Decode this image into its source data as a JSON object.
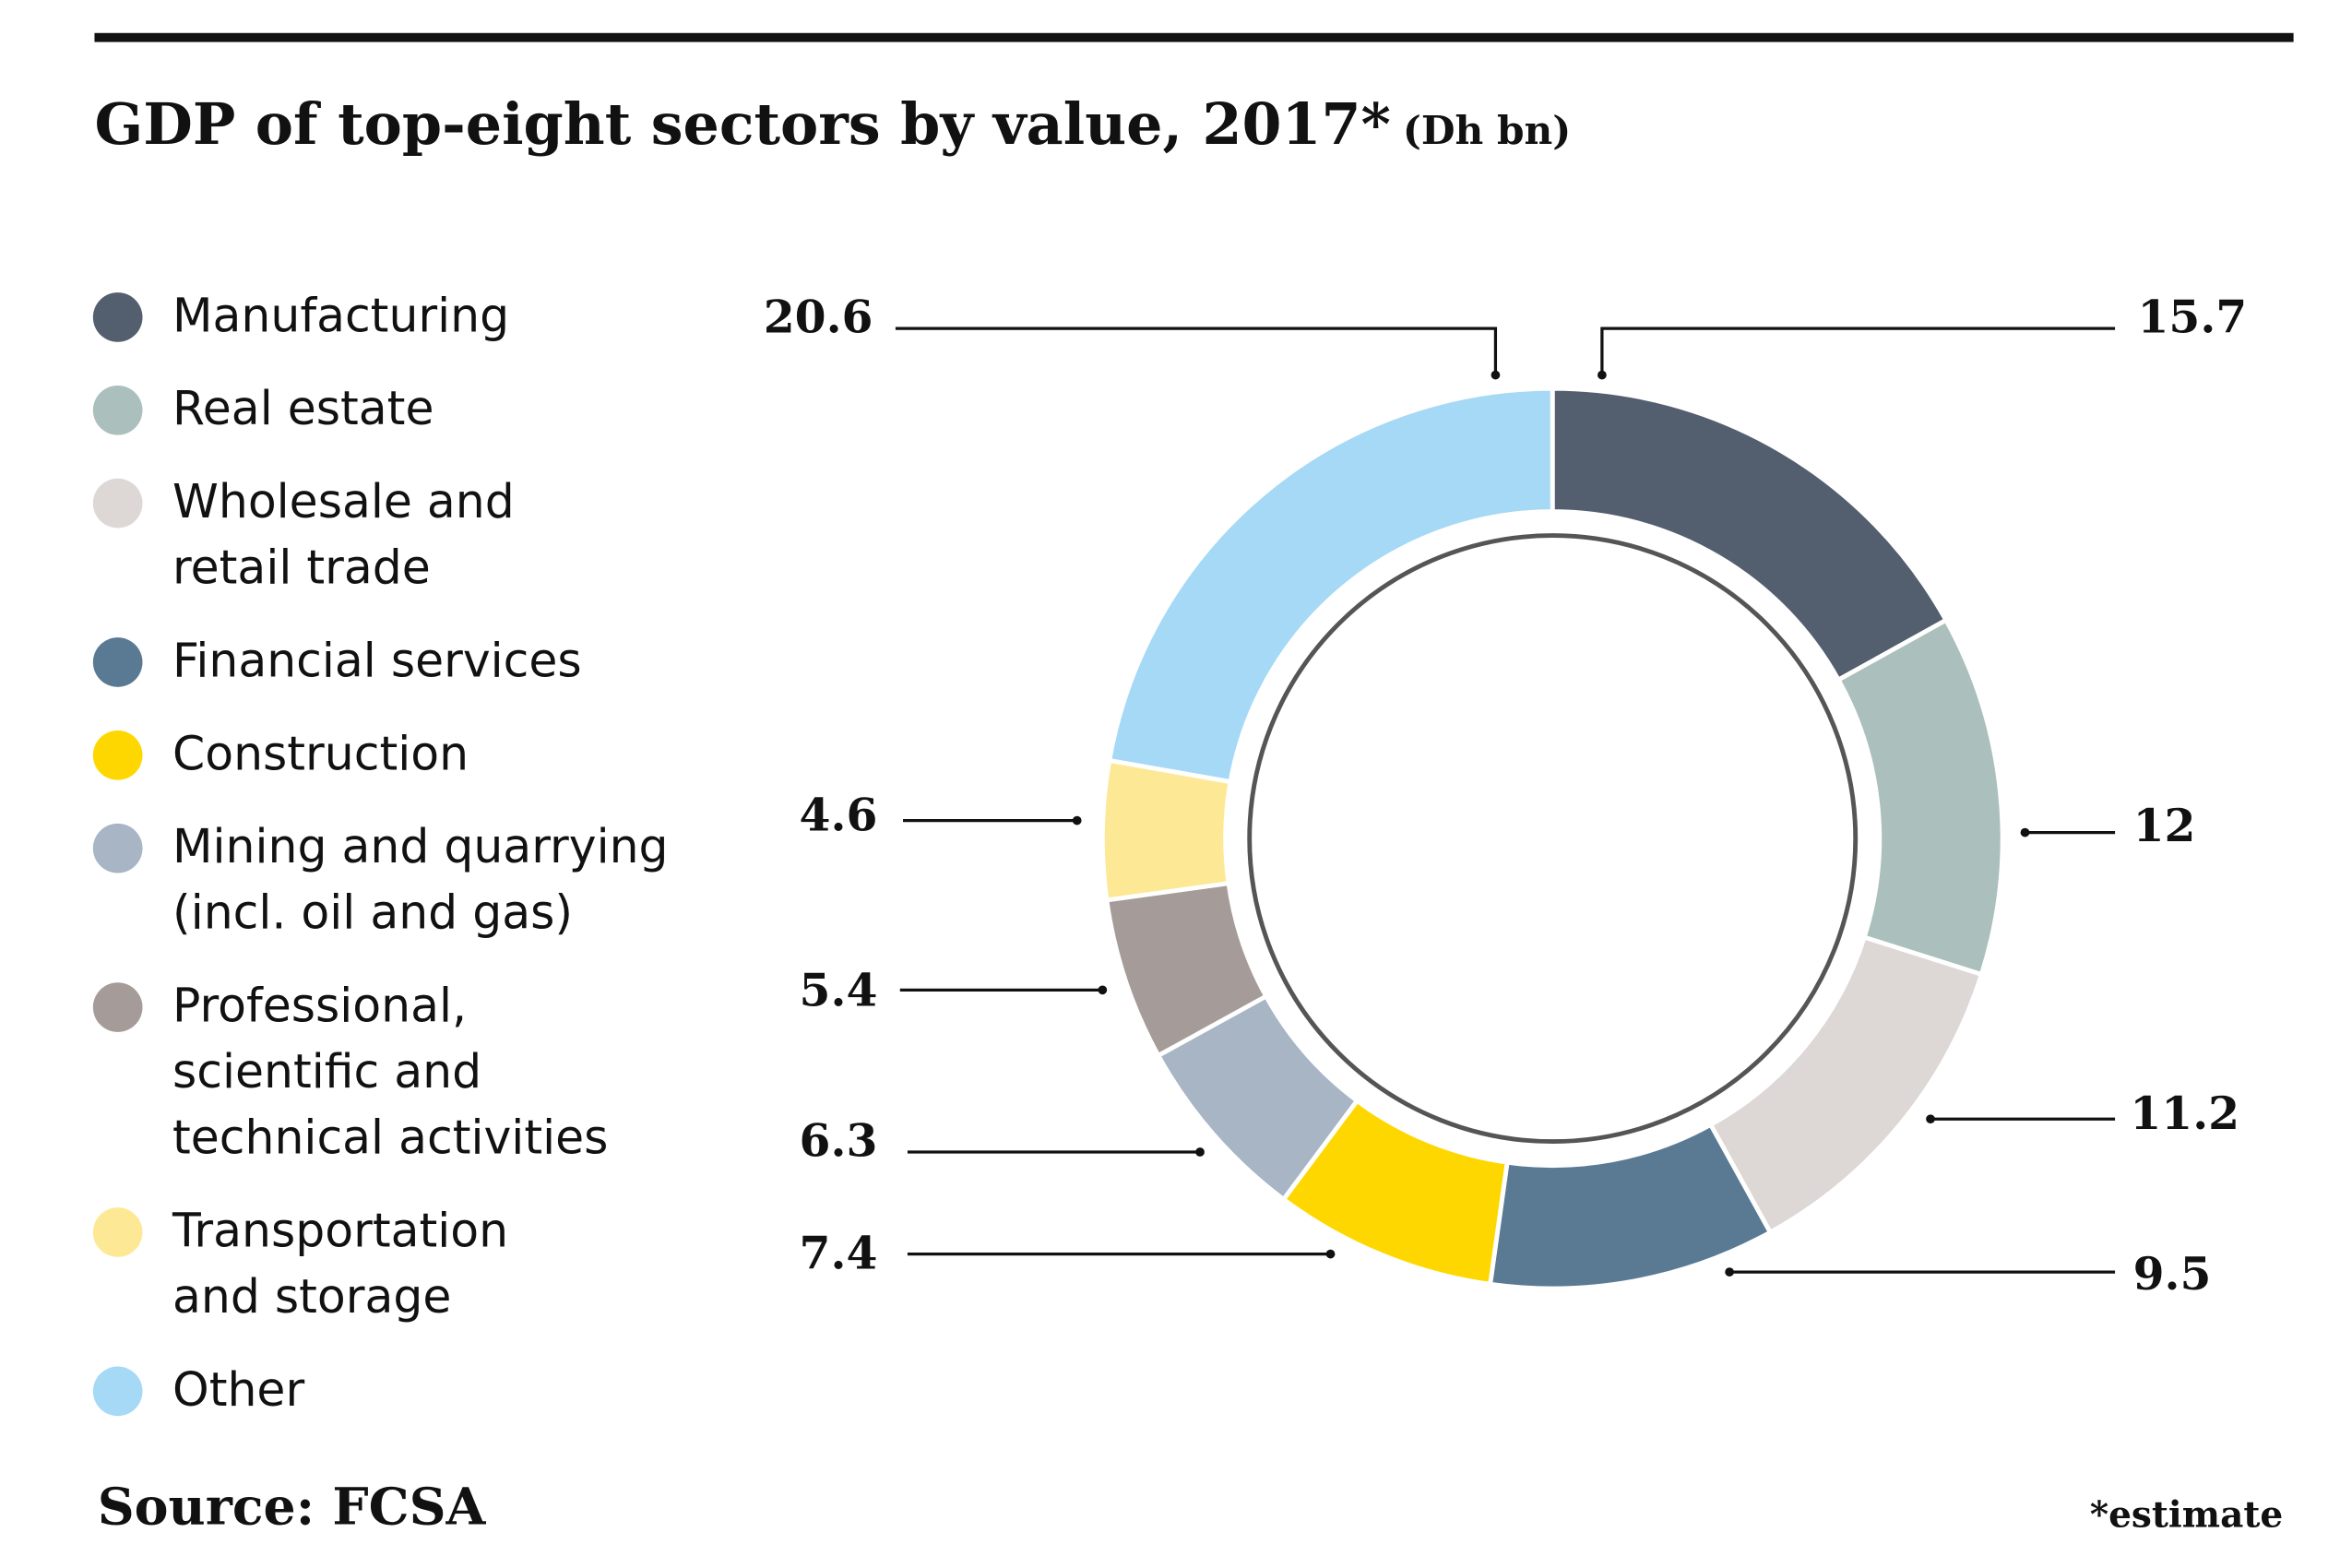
{
  "chart_data": {
    "type": "donut",
    "title": "GDP of top-eight sectors by value, 2017*",
    "subtitle": "(Dh bn)",
    "categories": [
      "Manufacturing",
      "Real estate",
      "Wholesale and\nretail trade",
      "Financial services",
      "Construction",
      "Mining and quarrying\n(incl. oil and gas)",
      "Professional,\nscientific and\ntechnical activities",
      "Transportation\nand storage",
      "Other"
    ],
    "values": [
      15.7,
      12,
      11.2,
      9.5,
      7.4,
      6.3,
      5.4,
      4.6,
      20.6
    ],
    "colors": [
      "#535f6e",
      "#abbfbc",
      "#ddd8d6",
      "#5a7a94",
      "#ffd700",
      "#a7b5c5",
      "#a59c99",
      "#fde995",
      "#a5d9f6"
    ],
    "source": "Source: FCSA",
    "note": "*estimate"
  }
}
